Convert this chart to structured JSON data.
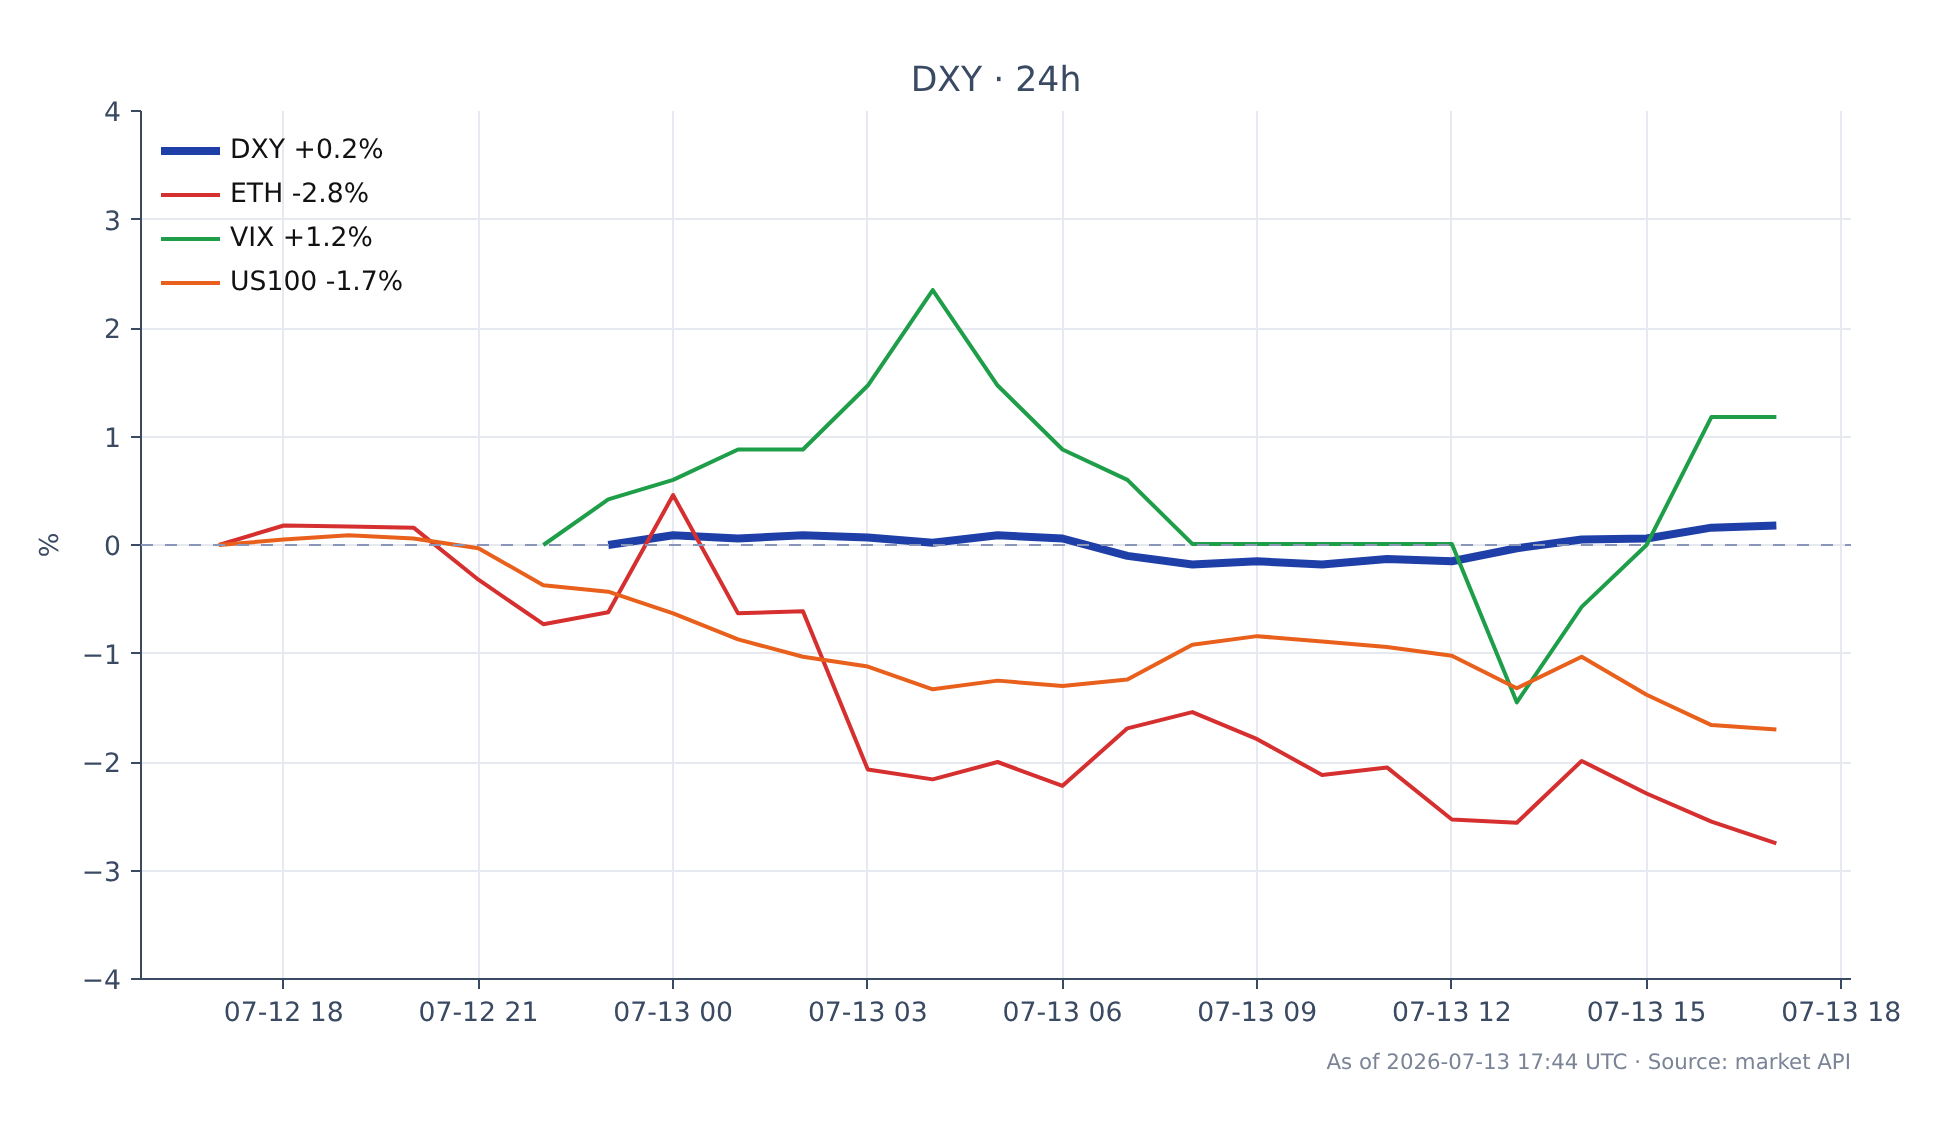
{
  "chart_data": {
    "type": "line",
    "title": "DXY · 24h",
    "ylabel": "%",
    "xlim": [
      "2026-07-12T15:48",
      "2026-07-13T18:09"
    ],
    "xticks": [
      {
        "value": "2026-07-12T18:00",
        "label": "07-12 18"
      },
      {
        "value": "2026-07-12T21:00",
        "label": "07-12 21"
      },
      {
        "value": "2026-07-13T00:00",
        "label": "07-13 00"
      },
      {
        "value": "2026-07-13T03:00",
        "label": "07-13 03"
      },
      {
        "value": "2026-07-13T06:00",
        "label": "07-13 06"
      },
      {
        "value": "2026-07-13T09:00",
        "label": "07-13 09"
      },
      {
        "value": "2026-07-13T12:00",
        "label": "07-13 12"
      },
      {
        "value": "2026-07-13T15:00",
        "label": "07-13 15"
      },
      {
        "value": "2026-07-13T18:00",
        "label": "07-13 18"
      }
    ],
    "ylim": [
      -4,
      4
    ],
    "yticks": [
      -4,
      -3,
      -2,
      -1,
      0,
      1,
      2,
      3,
      4
    ],
    "grid": true,
    "legend": "top left",
    "line_style": "solid",
    "ref_lines": [
      {
        "axis": "y",
        "value": 0,
        "color": "#8a96b8",
        "line_style": "dashed"
      }
    ],
    "annotations": [
      "As of 2026-07-13 17:44 UTC · Source: market API"
    ],
    "series": [
      {
        "name": "DXY +0.2%",
        "color": "#1f3fa8",
        "x": [
          "2026-07-12T23:00",
          "2026-07-13T00:00",
          "2026-07-13T01:00",
          "2026-07-13T02:00",
          "2026-07-13T03:00",
          "2026-07-13T04:00",
          "2026-07-13T05:00",
          "2026-07-13T06:00",
          "2026-07-13T07:00",
          "2026-07-13T08:00",
          "2026-07-13T09:00",
          "2026-07-13T10:00",
          "2026-07-13T11:00",
          "2026-07-13T12:00",
          "2026-07-13T13:00",
          "2026-07-13T14:00",
          "2026-07-13T15:00",
          "2026-07-13T16:00",
          "2026-07-13T17:00"
        ],
        "values": [
          0,
          0.09,
          0.06,
          0.09,
          0.07,
          0.02,
          0.09,
          0.06,
          -0.1,
          -0.18,
          -0.15,
          -0.18,
          -0.13,
          -0.15,
          -0.03,
          0.05,
          0.06,
          0.16,
          0.18
        ]
      },
      {
        "name": "ETH -2.8%",
        "color": "#d62f2f",
        "x": [
          "2026-07-12T17:00",
          "2026-07-12T18:00",
          "2026-07-12T19:00",
          "2026-07-12T20:00",
          "2026-07-12T21:00",
          "2026-07-12T22:00",
          "2026-07-12T23:00",
          "2026-07-13T00:00",
          "2026-07-13T01:00",
          "2026-07-13T02:00",
          "2026-07-13T03:00",
          "2026-07-13T04:00",
          "2026-07-13T05:00",
          "2026-07-13T06:00",
          "2026-07-13T07:00",
          "2026-07-13T08:00",
          "2026-07-13T09:00",
          "2026-07-13T10:00",
          "2026-07-13T11:00",
          "2026-07-13T12:00",
          "2026-07-13T13:00",
          "2026-07-13T14:00",
          "2026-07-13T15:00",
          "2026-07-13T16:00",
          "2026-07-13T17:00"
        ],
        "values": [
          0,
          0.18,
          0.17,
          0.16,
          -0.32,
          -0.73,
          -0.62,
          0.46,
          -0.63,
          -0.61,
          -2.07,
          -2.16,
          -2.0,
          -2.22,
          -1.69,
          -1.54,
          -1.79,
          -2.12,
          -2.05,
          -2.53,
          -2.56,
          -1.99,
          -2.29,
          -2.55,
          -2.75
        ]
      },
      {
        "name": "VIX +1.2%",
        "color": "#1f9e4a",
        "x": [
          "2026-07-12T22:00",
          "2026-07-12T23:00",
          "2026-07-13T00:00",
          "2026-07-13T01:00",
          "2026-07-13T02:00",
          "2026-07-13T03:00",
          "2026-07-13T04:00",
          "2026-07-13T05:00",
          "2026-07-13T06:00",
          "2026-07-13T07:00",
          "2026-07-13T08:00",
          "2026-07-13T09:00",
          "2026-07-13T10:00",
          "2026-07-13T11:00",
          "2026-07-13T12:00",
          "2026-07-13T13:00",
          "2026-07-13T14:00",
          "2026-07-13T15:00",
          "2026-07-13T16:00",
          "2026-07-13T17:00"
        ],
        "values": [
          0,
          0.42,
          0.6,
          0.88,
          0.88,
          1.47,
          2.35,
          1.47,
          0.88,
          0.6,
          0.01,
          0.01,
          0.01,
          0.01,
          0.01,
          -1.45,
          -0.57,
          0.0,
          1.18,
          1.18
        ]
      },
      {
        "name": "US100 -1.7%",
        "color": "#e8601c",
        "x": [
          "2026-07-12T17:00",
          "2026-07-12T18:00",
          "2026-07-12T19:00",
          "2026-07-12T20:00",
          "2026-07-12T21:00",
          "2026-07-12T22:00",
          "2026-07-12T23:00",
          "2026-07-13T00:00",
          "2026-07-13T01:00",
          "2026-07-13T02:00",
          "2026-07-13T03:00",
          "2026-07-13T04:00",
          "2026-07-13T05:00",
          "2026-07-13T06:00",
          "2026-07-13T07:00",
          "2026-07-13T08:00",
          "2026-07-13T09:00",
          "2026-07-13T10:00",
          "2026-07-13T11:00",
          "2026-07-13T12:00",
          "2026-07-13T13:00",
          "2026-07-13T14:00",
          "2026-07-13T15:00",
          "2026-07-13T16:00",
          "2026-07-13T17:00"
        ],
        "values": [
          0,
          0.05,
          0.09,
          0.06,
          -0.03,
          -0.37,
          -0.43,
          -0.63,
          -0.87,
          -1.03,
          -1.12,
          -1.33,
          -1.25,
          -1.3,
          -1.24,
          -0.92,
          -0.84,
          -0.89,
          -0.94,
          -1.02,
          -1.32,
          -1.03,
          -1.38,
          -1.66,
          -1.7
        ]
      }
    ]
  }
}
